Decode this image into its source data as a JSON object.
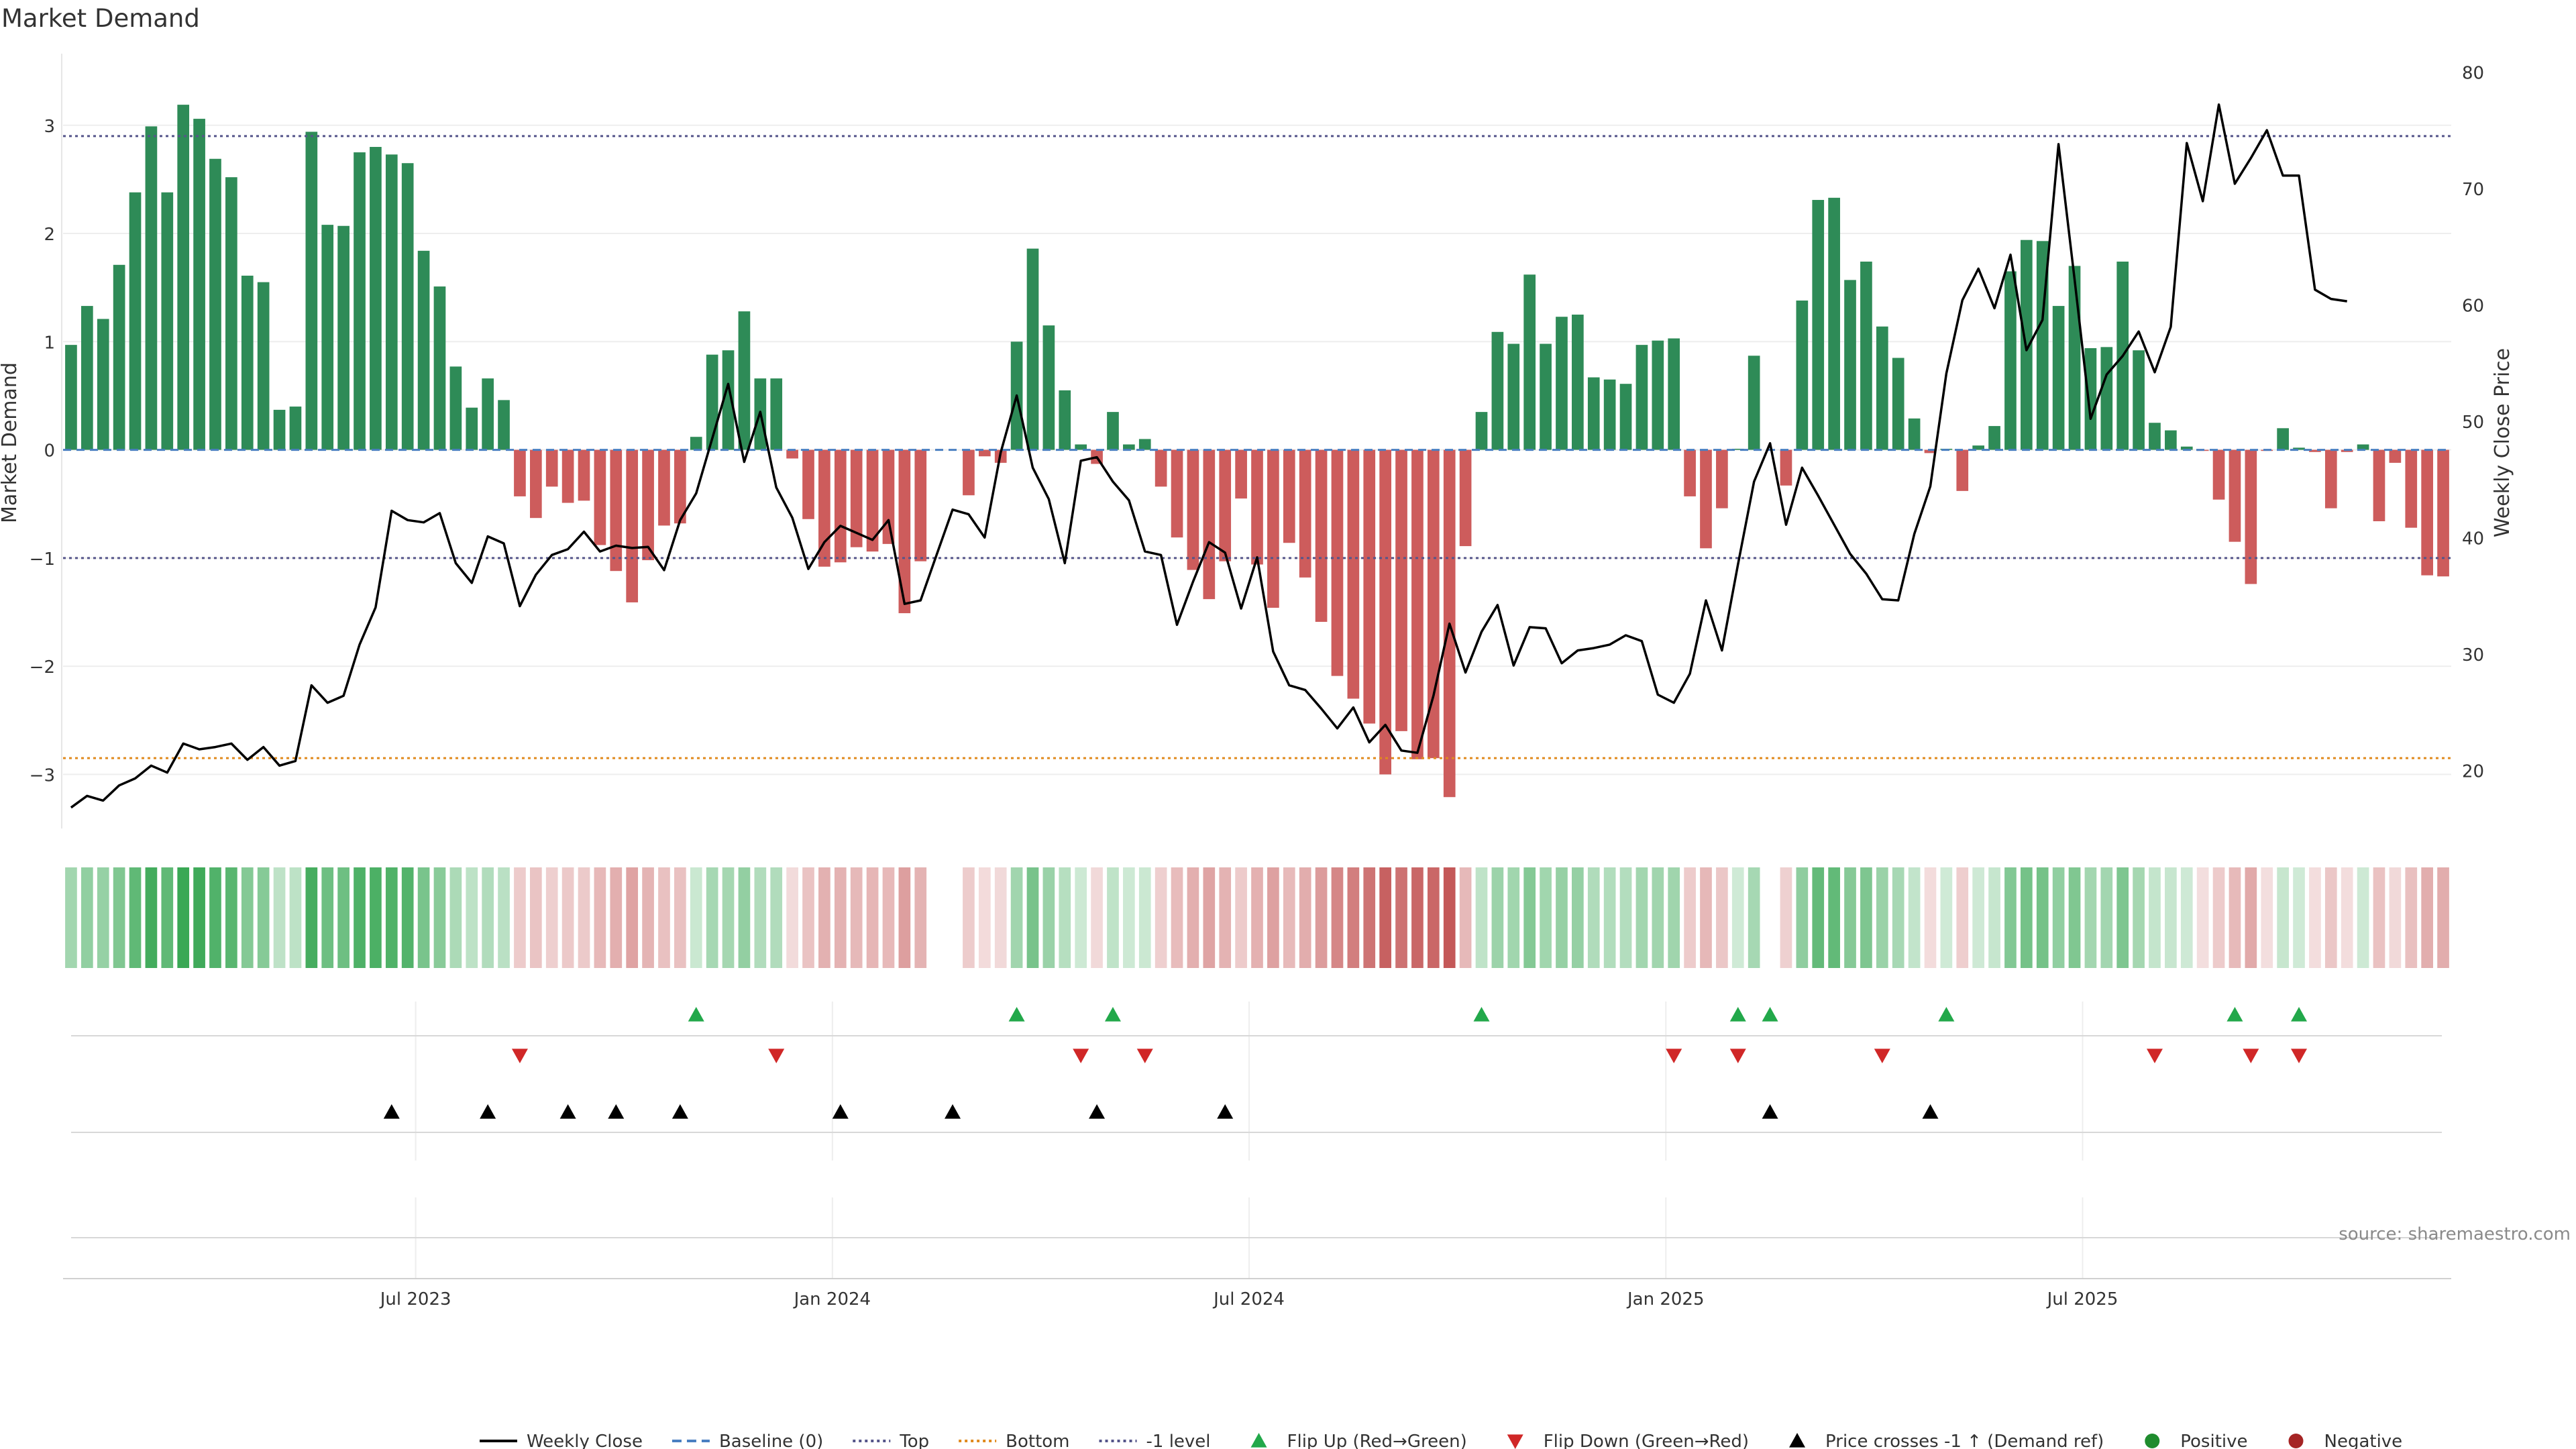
{
  "chart_data": {
    "type": "bar",
    "title": "Market Demand",
    "ylabel_left": "Market Demand",
    "ylabel_right": "Weekly Close Price",
    "ylim_left": [
      -3.5,
      3.6
    ],
    "ylim_right": [
      15,
      81
    ],
    "yticks_left": [
      {
        "v": 3,
        "label": "3"
      },
      {
        "v": 2,
        "label": "2"
      },
      {
        "v": 1,
        "label": "1"
      },
      {
        "v": 0,
        "label": "0"
      },
      {
        "v": -1,
        "label": "−1"
      },
      {
        "v": -2,
        "label": "−2"
      },
      {
        "v": -3,
        "label": "−3"
      }
    ],
    "yticks_right": [
      {
        "v": 80,
        "label": "80"
      },
      {
        "v": 70,
        "label": "70"
      },
      {
        "v": 60,
        "label": "60"
      },
      {
        "v": 50,
        "label": "50"
      },
      {
        "v": 40,
        "label": "40"
      },
      {
        "v": 30,
        "label": "30"
      },
      {
        "v": 20,
        "label": "20"
      }
    ],
    "xticks": [
      {
        "index": 22,
        "label": "Jul 2023"
      },
      {
        "index": 48,
        "label": "Jan 2024"
      },
      {
        "index": 74,
        "label": "Jul 2024"
      },
      {
        "index": 100,
        "label": "Jan 2025"
      },
      {
        "index": 126,
        "label": "Jul 2025"
      }
    ],
    "reference_lines": {
      "top": 2.9,
      "bottom": -2.85,
      "minus_one": -1,
      "baseline": 0
    },
    "demand": [
      0.97,
      1.33,
      1.21,
      1.71,
      2.38,
      2.99,
      2.38,
      3.19,
      3.06,
      2.69,
      2.52,
      1.61,
      1.55,
      0.37,
      0.4,
      2.94,
      2.08,
      2.07,
      2.75,
      2.8,
      2.73,
      2.65,
      1.84,
      1.51,
      0.77,
      0.39,
      0.66,
      0.46,
      -0.43,
      -0.63,
      -0.34,
      -0.49,
      -0.47,
      -0.88,
      -1.12,
      -1.41,
      -1.02,
      -0.7,
      -0.68,
      0.12,
      0.88,
      0.92,
      1.28,
      0.66,
      0.66,
      -0.08,
      -0.64,
      -1.08,
      -1.04,
      -0.9,
      -0.94,
      -0.87,
      -1.51,
      -1.03,
      0.0,
      0.0,
      -0.42,
      -0.06,
      -0.12,
      1.0,
      1.86,
      1.15,
      0.55,
      0.05,
      -0.13,
      0.35,
      0.05,
      0.1,
      -0.34,
      -0.81,
      -1.11,
      -1.38,
      -1.03,
      -0.45,
      -1.06,
      -1.46,
      -0.86,
      -1.18,
      -1.59,
      -2.09,
      -2.3,
      -2.53,
      -3.0,
      -2.6,
      -2.86,
      -2.85,
      -3.21,
      -0.89,
      0.35,
      1.09,
      0.98,
      1.62,
      0.98,
      1.23,
      1.25,
      0.67,
      0.65,
      0.61,
      0.97,
      1.01,
      1.03,
      -0.43,
      -0.91,
      -0.54,
      0.01,
      0.87,
      0.0,
      -0.33,
      1.38,
      2.31,
      2.33,
      1.57,
      1.74,
      1.14,
      0.85,
      0.29,
      -0.03,
      0.01,
      -0.38,
      0.04,
      0.22,
      1.65,
      1.94,
      1.93,
      1.33,
      1.7,
      0.94,
      0.95,
      1.74,
      0.92,
      0.25,
      0.18,
      0.03,
      -0.01,
      -0.46,
      -0.85,
      -1.24,
      -0.01,
      0.2,
      0.02,
      -0.02,
      -0.54,
      -0.02,
      0.05,
      -0.66,
      -0.12,
      -0.72,
      -1.16,
      -1.17
    ],
    "weekly_close": [
      16.8,
      17.8,
      17.4,
      18.7,
      19.3,
      20.4,
      19.8,
      22.3,
      21.8,
      22.0,
      22.3,
      20.9,
      22.0,
      20.4,
      20.8,
      27.3,
      25.8,
      26.4,
      30.8,
      34.0,
      42.3,
      41.5,
      41.3,
      42.1,
      37.8,
      36.1,
      40.1,
      39.5,
      34.1,
      36.8,
      38.5,
      39.0,
      40.5,
      38.8,
      39.3,
      39.1,
      39.2,
      37.2,
      41.5,
      43.8,
      48.5,
      53.2,
      46.5,
      50.8,
      44.3,
      41.7,
      37.3,
      39.6,
      41.0,
      40.4,
      39.8,
      41.5,
      34.3,
      34.6,
      38.5,
      42.4,
      42.0,
      40.0,
      47.3,
      52.2,
      46.0,
      43.3,
      37.8,
      46.6,
      46.9,
      44.8,
      43.2,
      38.8,
      38.5,
      32.5,
      36.2,
      39.6,
      38.7,
      33.9,
      38.3,
      30.2,
      27.3,
      26.9,
      25.3,
      23.6,
      25.4,
      22.4,
      23.9,
      21.7,
      21.5,
      26.4,
      32.6,
      28.4,
      31.9,
      34.2,
      29.0,
      32.3,
      32.2,
      29.2,
      30.3,
      30.5,
      30.8,
      31.6,
      31.1,
      26.5,
      25.8,
      28.3,
      34.6,
      30.3,
      37.7,
      44.8,
      48.1,
      41.1,
      46.0,
      43.6,
      41.1,
      38.6,
      36.9,
      34.7,
      34.6,
      40.3,
      44.4,
      54.1,
      60.4,
      63.1,
      59.7,
      64.3,
      56.1,
      58.7,
      73.8,
      62.2,
      50.2,
      54.0,
      55.6,
      57.7,
      54.2,
      58.1,
      73.9,
      68.9,
      77.2,
      70.4,
      72.6,
      75.0,
      71.1,
      71.1,
      61.3,
      60.5,
      60.3
    ],
    "flip_up_indices": [
      39,
      59,
      65,
      88,
      104,
      106,
      117,
      135,
      139
    ],
    "flip_down_indices": [
      28,
      44,
      63,
      67,
      100,
      104,
      113,
      130,
      136,
      139
    ],
    "price_cross_indices": [
      20,
      26,
      31,
      34,
      38,
      48,
      55,
      64,
      72,
      106,
      116
    ],
    "source_text": "source: sharemaestro.com",
    "legend": [
      {
        "kind": "line",
        "label": "Weekly Close",
        "color": "#000000"
      },
      {
        "kind": "dash",
        "label": "Baseline (0)",
        "color": "#4a7fc1"
      },
      {
        "kind": "dotted",
        "label": "Top",
        "color": "#55558a"
      },
      {
        "kind": "dotted",
        "label": "Bottom",
        "color": "#e08a1e"
      },
      {
        "kind": "dotted",
        "label": "-1 level",
        "color": "#55558a"
      },
      {
        "kind": "tri-up",
        "label": "Flip Up (Red→Green)",
        "color": "#22a84a"
      },
      {
        "kind": "tri-down",
        "label": "Flip Down (Green→Red)",
        "color": "#d02727"
      },
      {
        "kind": "tri-up",
        "label": "Price crosses -1 ↑ (Demand ref)",
        "color": "#000000"
      },
      {
        "kind": "dot",
        "label": "Positive",
        "color": "#1f8c2e"
      },
      {
        "kind": "dot",
        "label": "Negative",
        "color": "#a52424"
      }
    ],
    "colors": {
      "positive_bar": "#2e8b57",
      "negative_bar": "#cd5c5c",
      "line": "#000000",
      "grid": "#eeeeee"
    }
  }
}
